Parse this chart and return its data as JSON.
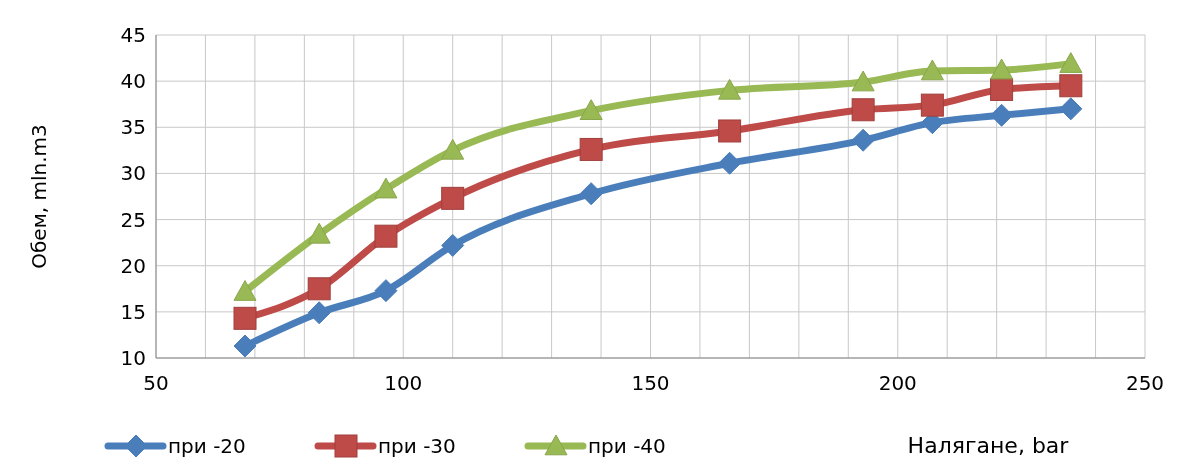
{
  "chart_data": {
    "type": "line",
    "xlabel": "Налягане, bar",
    "ylabel": "Обем, mln.m3",
    "xlim": [
      50,
      250
    ],
    "xticks": [
      50,
      {
        "value": 60,
        "label": null
      },
      {
        "value": 70,
        "label": null
      },
      {
        "value": 80,
        "label": null
      },
      {
        "value": 90,
        "label": null
      },
      100,
      {
        "value": 110,
        "label": null
      },
      {
        "value": 120,
        "label": null
      },
      {
        "value": 130,
        "label": null
      },
      {
        "value": 140,
        "label": null
      },
      150,
      {
        "value": 160,
        "label": null
      },
      {
        "value": 170,
        "label": null
      },
      {
        "value": 180,
        "label": null
      },
      {
        "value": 190,
        "label": null
      },
      200,
      {
        "value": 210,
        "label": null
      },
      {
        "value": 220,
        "label": null
      },
      {
        "value": 230,
        "label": null
      },
      {
        "value": 240,
        "label": null
      },
      250
    ],
    "ylim": [
      10,
      45
    ],
    "yticks": [
      10,
      15,
      20,
      25,
      30,
      35,
      40,
      45
    ],
    "grid": true,
    "legend": "bottom left",
    "line_style": "solid",
    "x": [
      68,
      83,
      96.5,
      110,
      138,
      166,
      193,
      207,
      221,
      235
    ],
    "series": [
      {
        "name": "при -20",
        "color": "#4a7ebb",
        "marker": "diamond",
        "values": [
          11.3,
          14.9,
          17.3,
          22.2,
          27.8,
          31.1,
          33.6,
          35.5,
          36.3,
          37.0
        ]
      },
      {
        "name": "при -30",
        "color": "#be4b48",
        "marker": "square",
        "values": [
          14.3,
          17.5,
          23.2,
          27.3,
          32.6,
          34.6,
          36.9,
          37.4,
          39.1,
          39.5
        ]
      },
      {
        "name": "при -40",
        "color": "#98b954",
        "marker": "triangle",
        "values": [
          17.2,
          23.4,
          28.3,
          32.5,
          36.8,
          39.0,
          39.9,
          41.1,
          41.2,
          41.9
        ]
      }
    ]
  }
}
